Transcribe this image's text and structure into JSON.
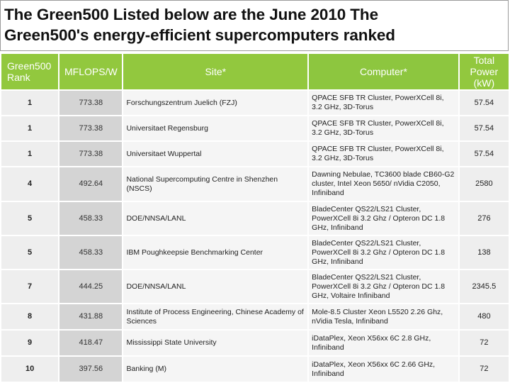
{
  "title": {
    "line1": "The Green500 Listed below are the June 2010 The",
    "line2": "Green500's energy-efficient supercomputers ranked"
  },
  "table": {
    "headers": {
      "rank": "Green500 Rank",
      "mflops": "MFLOPS/W",
      "site": "Site*",
      "computer": "Computer*",
      "power": "Total Power (kW)"
    },
    "rows": [
      {
        "rank": "1",
        "mflops": "773.38",
        "site": "Forschungszentrum Juelich (FZJ)",
        "computer": "QPACE SFB TR Cluster, PowerXCell 8i, 3.2 GHz, 3D-Torus",
        "power": "57.54"
      },
      {
        "rank": "1",
        "mflops": "773.38",
        "site": "Universitaet Regensburg",
        "computer": "QPACE SFB TR Cluster, PowerXCell 8i, 3.2 GHz, 3D-Torus",
        "power": "57.54"
      },
      {
        "rank": "1",
        "mflops": "773.38",
        "site": "Universitaet Wuppertal",
        "computer": "QPACE SFB TR Cluster, PowerXCell 8i, 3.2 GHz, 3D-Torus",
        "power": "57.54"
      },
      {
        "rank": "4",
        "mflops": "492.64",
        "site": "National Supercomputing Centre in Shenzhen (NSCS)",
        "computer": "Dawning Nebulae, TC3600 blade CB60-G2 cluster, Intel Xeon 5650/ nVidia C2050, Infiniband",
        "power": "2580"
      },
      {
        "rank": "5",
        "mflops": "458.33",
        "site": "DOE/NNSA/LANL",
        "computer": "BladeCenter QS22/LS21 Cluster, PowerXCell 8i 3.2 Ghz / Opteron DC 1.8 GHz, Infiniband",
        "power": "276"
      },
      {
        "rank": "5",
        "mflops": "458.33",
        "site": "IBM Poughkeepsie Benchmarking Center",
        "computer": "BladeCenter QS22/LS21 Cluster, PowerXCell 8i 3.2 Ghz / Opteron DC 1.8 GHz, Infiniband",
        "power": "138"
      },
      {
        "rank": "7",
        "mflops": "444.25",
        "site": "DOE/NNSA/LANL",
        "computer": "BladeCenter QS22/LS21 Cluster, PowerXCell 8i 3.2 Ghz / Opteron DC 1.8 GHz, Voltaire Infiniband",
        "power": "2345.5"
      },
      {
        "rank": "8",
        "mflops": "431.88",
        "site": "Institute of Process Engineering, Chinese Academy of Sciences",
        "computer": "Mole-8.5 Cluster Xeon L5520 2.26 Ghz, nVidia Tesla, Infiniband",
        "power": "480"
      },
      {
        "rank": "9",
        "mflops": "418.47",
        "site": "Mississippi State University",
        "computer": "iDataPlex, Xeon X56xx 6C 2.8 GHz, Infiniband",
        "power": "72"
      },
      {
        "rank": "10",
        "mflops": "397.56",
        "site": "Banking (M)",
        "computer": "iDataPlex, Xeon X56xx 6C 2.66 GHz, Infiniband",
        "power": "72"
      }
    ]
  }
}
